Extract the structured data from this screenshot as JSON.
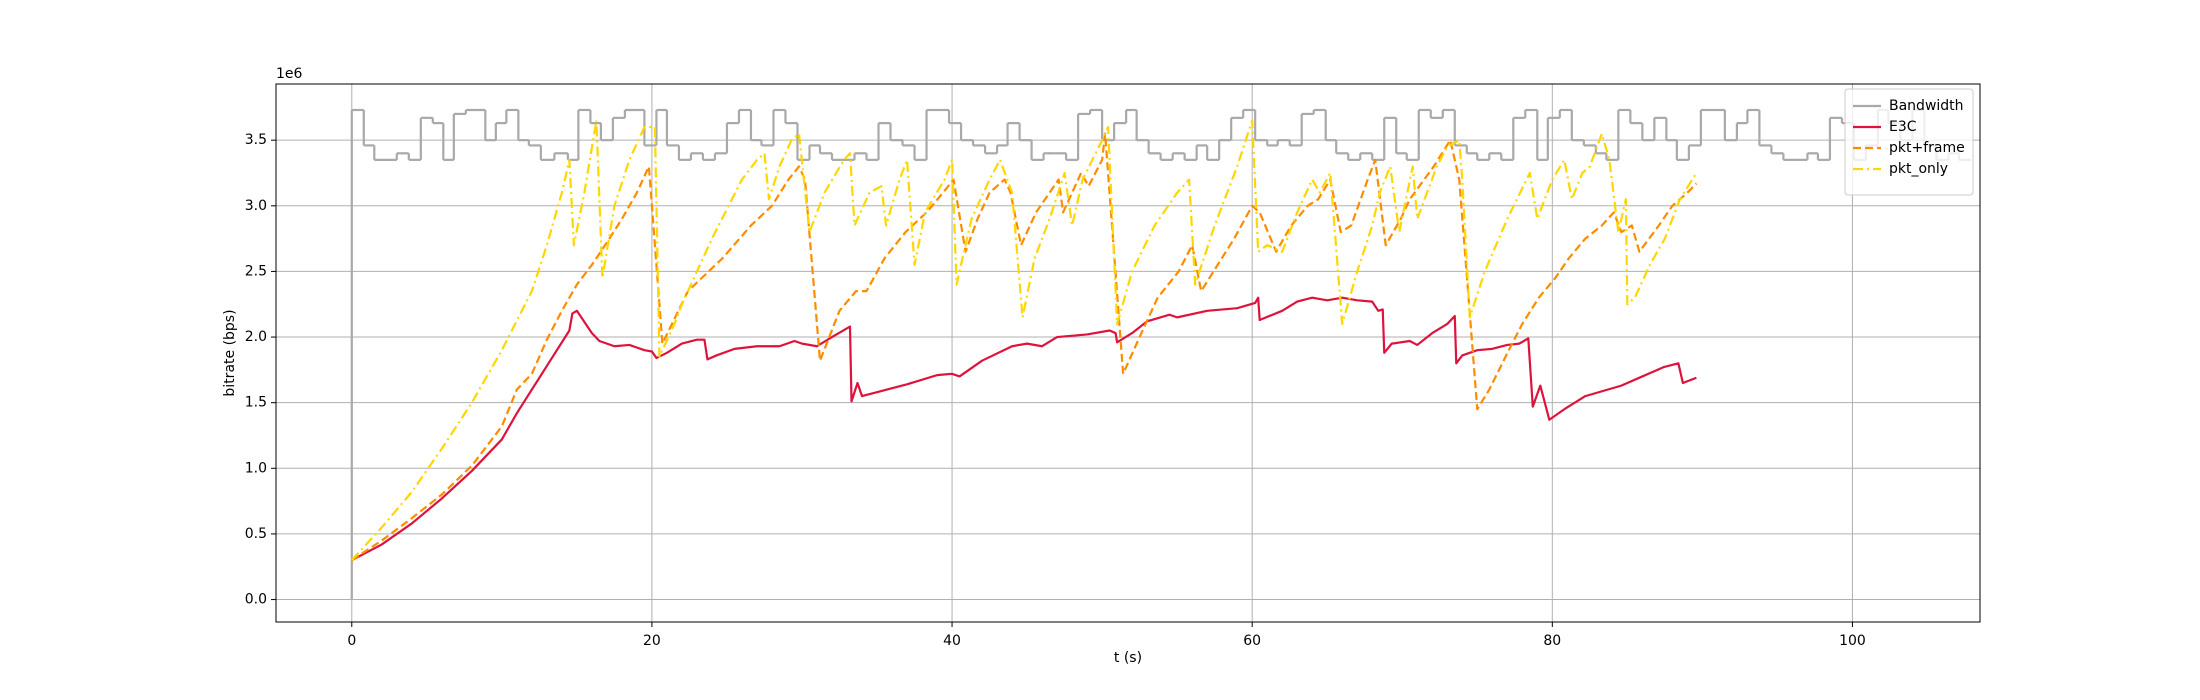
{
  "chart_data": {
    "type": "line",
    "x_label": "t (s)",
    "y_label": "bitrate (bps)",
    "y_offset_label": "1e6",
    "xlim": [
      -5.05,
      108.5
    ],
    "xticks": [
      0,
      20,
      40,
      60,
      80,
      100
    ],
    "ylim": [
      -0.171,
      3.928
    ],
    "yticks": [
      {
        "value": 0,
        "label": "0.0"
      },
      0.5,
      {
        "value": 1,
        "label": "1.0"
      },
      1.5,
      {
        "value": 2,
        "label": "2.0"
      },
      2.5,
      {
        "value": 3,
        "label": "3.0"
      },
      3.5
    ],
    "grid": true,
    "legend": "upper right",
    "series": [
      {
        "name": "Bandwidth",
        "color": "#a9a9a9",
        "linestyle": "solid",
        "drawstyle": "steps-post",
        "x": [
          0,
          0,
          0.8,
          1.5,
          3.0,
          3.8,
          4.6,
          5.4,
          6.1,
          6.8,
          7.6,
          8.9,
          9.6,
          10.3,
          11.1,
          11.8,
          12.6,
          13.5,
          14.4,
          15.1,
          15.9,
          16.6,
          17.4,
          18.2,
          19.5,
          20.3,
          21.0,
          21.8,
          22.6,
          23.4,
          24.2,
          25.0,
          25.8,
          26.6,
          27.3,
          28.1,
          28.9,
          29.7,
          30.5,
          31.2,
          32.0,
          32.8,
          33.5,
          34.3,
          35.1,
          35.9,
          36.7,
          37.5,
          38.3,
          39.0,
          39.8,
          40.6,
          41.4,
          42.2,
          43.0,
          43.7,
          44.5,
          45.3,
          46.1,
          46.9,
          47.6,
          48.4,
          49.2,
          50.0,
          50.8,
          51.6,
          52.3,
          53.1,
          53.9,
          54.7,
          55.5,
          56.3,
          57.0,
          57.8,
          58.6,
          59.4,
          60.2,
          61.0,
          61.7,
          62.5,
          63.3,
          64.1,
          64.9,
          65.6,
          66.4,
          67.2,
          68.0,
          68.8,
          69.6,
          70.3,
          71.1,
          71.9,
          72.7,
          73.5,
          74.3,
          75.0,
          75.8,
          76.6,
          77.4,
          78.2,
          79.0,
          79.7,
          80.5,
          81.3,
          82.1,
          82.9,
          83.6,
          84.4,
          85.2,
          86.0,
          86.8,
          87.6,
          88.3,
          89.1,
          89.9,
          90.7,
          91.5,
          92.3,
          93.0,
          93.8,
          94.6,
          95.4,
          96.2,
          97.0,
          97.7,
          98.5,
          99.3,
          100.1,
          100.9,
          101.7,
          102.4,
          103.2,
          104.0,
          104.8,
          105.6,
          106.4,
          107.1,
          107.9
        ],
        "values": [
          0,
          3.73,
          3.46,
          3.35,
          3.4,
          3.35,
          3.67,
          3.63,
          3.35,
          3.7,
          3.73,
          3.5,
          3.63,
          3.73,
          3.5,
          3.46,
          3.35,
          3.4,
          3.35,
          3.73,
          3.63,
          3.5,
          3.67,
          3.73,
          3.46,
          3.73,
          3.46,
          3.35,
          3.4,
          3.35,
          3.4,
          3.63,
          3.73,
          3.5,
          3.46,
          3.73,
          3.63,
          3.35,
          3.46,
          3.4,
          3.35,
          3.35,
          3.4,
          3.35,
          3.63,
          3.5,
          3.46,
          3.35,
          3.73,
          3.73,
          3.63,
          3.5,
          3.46,
          3.4,
          3.46,
          3.63,
          3.5,
          3.35,
          3.4,
          3.4,
          3.35,
          3.7,
          3.73,
          3.5,
          3.63,
          3.73,
          3.5,
          3.4,
          3.35,
          3.4,
          3.35,
          3.46,
          3.35,
          3.5,
          3.67,
          3.73,
          3.5,
          3.46,
          3.5,
          3.46,
          3.7,
          3.73,
          3.5,
          3.4,
          3.35,
          3.4,
          3.35,
          3.67,
          3.4,
          3.35,
          3.73,
          3.67,
          3.73,
          3.46,
          3.4,
          3.35,
          3.4,
          3.35,
          3.67,
          3.73,
          3.35,
          3.67,
          3.73,
          3.5,
          3.46,
          3.4,
          3.35,
          3.73,
          3.63,
          3.5,
          3.67,
          3.5,
          3.35,
          3.46,
          3.73,
          3.73,
          3.5,
          3.63,
          3.73,
          3.46,
          3.4,
          3.35,
          3.35,
          3.4,
          3.35,
          3.67,
          3.63,
          3.35,
          3.46,
          3.73,
          3.63,
          3.5,
          3.73,
          3.46,
          3.35,
          3.4,
          3.35,
          3.35
        ]
      },
      {
        "name": "E3C",
        "color": "#dc143c",
        "linestyle": "solid",
        "x": [
          0,
          2,
          4,
          6,
          8,
          10,
          11,
          13,
          14.5,
          14.7,
          15,
          16,
          16.5,
          17.5,
          18.5,
          19.5,
          20,
          20.3,
          21,
          22,
          23,
          23.5,
          23.7,
          24.3,
          25.5,
          27,
          28.5,
          29.5,
          30,
          31,
          32,
          33.2,
          33.3,
          33.7,
          34,
          35,
          37,
          39,
          40,
          40.5,
          42,
          44,
          45,
          46,
          47,
          49,
          50.5,
          50.9,
          51,
          52,
          53,
          54.5,
          55,
          57,
          59,
          60.2,
          60.4,
          60.5,
          62,
          63,
          64,
          65,
          66,
          67,
          68,
          68.4,
          68.7,
          68.8,
          69.3,
          70.5,
          71,
          72,
          73,
          73.5,
          73.6,
          74,
          75,
          76,
          77,
          77.8,
          78.4,
          78.7,
          79.2,
          79.8,
          80.8,
          82.2,
          84.6,
          86,
          87.4,
          88.4,
          88.7,
          89.6
        ],
        "values": [
          0.3,
          0.42,
          0.58,
          0.77,
          0.98,
          1.22,
          1.42,
          1.78,
          2.05,
          2.18,
          2.2,
          2.03,
          1.97,
          1.93,
          1.94,
          1.9,
          1.89,
          1.84,
          1.88,
          1.95,
          1.98,
          1.98,
          1.83,
          1.86,
          1.91,
          1.93,
          1.93,
          1.97,
          1.95,
          1.93,
          2.0,
          2.08,
          1.51,
          1.65,
          1.55,
          1.58,
          1.64,
          1.71,
          1.72,
          1.7,
          1.82,
          1.93,
          1.95,
          1.93,
          2.0,
          2.02,
          2.05,
          2.03,
          1.96,
          2.03,
          2.12,
          2.17,
          2.15,
          2.2,
          2.22,
          2.26,
          2.3,
          2.13,
          2.2,
          2.27,
          2.3,
          2.28,
          2.3,
          2.28,
          2.27,
          2.2,
          2.21,
          1.88,
          1.95,
          1.97,
          1.94,
          2.03,
          2.1,
          2.16,
          1.8,
          1.86,
          1.9,
          1.91,
          1.94,
          1.95,
          1.99,
          1.47,
          1.63,
          1.37,
          1.45,
          1.55,
          1.63,
          1.7,
          1.77,
          1.8,
          1.65,
          1.69
        ]
      },
      {
        "name": "pkt+frame",
        "color": "#ff8c00",
        "linestyle": "dashed",
        "x": [
          0,
          2,
          4,
          6,
          8,
          10,
          11,
          12,
          13,
          14,
          15,
          16,
          17,
          18,
          19,
          19.8,
          20.7,
          22.4,
          24.7,
          26.6,
          28,
          29.1,
          29.8,
          30.2,
          31.2,
          32.5,
          33.6,
          34.3,
          35.5,
          36.9,
          38.3,
          39.4,
          40.1,
          40.9,
          41.7,
          42.5,
          43.5,
          43.9,
          44.6,
          45.6,
          46.5,
          47.1,
          47.4,
          48.6,
          49.1,
          50,
          50.2,
          51.4,
          52.5,
          53.7,
          55.1,
          56,
          56.6,
          57.7,
          58.8,
          60,
          60.5,
          61.6,
          62.6,
          63.7,
          64.4,
          65.2,
          65.9,
          66.6,
          67.7,
          68.2,
          68.9,
          69.9,
          70.5,
          72.1,
          73.2,
          73.8,
          75,
          75.8,
          77.1,
          78,
          79.1,
          80.2,
          81.1,
          82.2,
          83.3,
          84.1,
          84.6,
          85.3,
          85.8,
          87.1,
          88,
          89,
          89.6
        ],
        "values": [
          0.3,
          0.45,
          0.62,
          0.8,
          1.02,
          1.32,
          1.6,
          1.72,
          1.98,
          2.2,
          2.4,
          2.55,
          2.72,
          2.9,
          3.1,
          3.3,
          1.95,
          2.35,
          2.6,
          2.85,
          3.0,
          3.2,
          3.3,
          3.2,
          1.82,
          2.2,
          2.35,
          2.35,
          2.6,
          2.8,
          2.95,
          3.1,
          3.2,
          2.65,
          2.9,
          3.1,
          3.2,
          3.1,
          2.7,
          2.95,
          3.1,
          3.2,
          2.95,
          3.25,
          3.15,
          3.35,
          3.55,
          1.72,
          2.0,
          2.3,
          2.5,
          2.7,
          2.35,
          2.55,
          2.75,
          3.0,
          2.95,
          2.65,
          2.85,
          3.0,
          3.05,
          3.2,
          2.8,
          2.85,
          3.2,
          3.35,
          2.7,
          2.9,
          3.05,
          3.3,
          3.5,
          3.2,
          1.45,
          1.6,
          1.9,
          2.1,
          2.3,
          2.45,
          2.6,
          2.75,
          2.85,
          2.95,
          2.8,
          2.85,
          2.65,
          2.85,
          3.0,
          3.1,
          3.17
        ]
      },
      {
        "name": "pkt_only",
        "color": "#ffd700",
        "linestyle": "dashdot",
        "x": [
          0,
          2,
          4,
          6,
          8,
          10,
          12,
          13,
          14,
          14.5,
          14.8,
          15.5,
          16.3,
          16.7,
          17.5,
          18.5,
          19.5,
          20.2,
          20.5,
          21.5,
          22,
          24,
          26,
          27,
          27.5,
          27.8,
          28.5,
          29.3,
          29.8,
          30.5,
          31.5,
          32.8,
          33.2,
          33.5,
          34.5,
          35.3,
          35.6,
          36.5,
          37,
          37.5,
          38.2,
          39.5,
          40,
          40.3,
          41.3,
          42.5,
          43.2,
          44,
          44.7,
          45.5,
          46.5,
          47.5,
          48,
          48.7,
          50,
          50.4,
          51,
          52,
          53.5,
          55,
          55.8,
          56.2,
          57.5,
          59,
          60,
          60.4,
          61,
          62,
          63,
          64,
          64.5,
          65.2,
          66,
          67,
          68,
          68.5,
          69.2,
          69.8,
          70.7,
          71,
          72.3,
          73,
          73.8,
          74,
          74.5,
          75.5,
          77,
          78.5,
          79,
          80,
          80.8,
          81.3,
          82,
          82.5,
          83.3,
          83.8,
          84.4,
          84.9,
          85,
          85.5,
          86.5,
          87.5,
          88.5,
          89.6
        ],
        "values": [
          0.3,
          0.55,
          0.82,
          1.15,
          1.5,
          1.9,
          2.35,
          2.7,
          3.1,
          3.35,
          2.7,
          3.1,
          3.65,
          2.45,
          3.0,
          3.35,
          3.6,
          3.6,
          1.85,
          2.1,
          2.25,
          2.75,
          3.2,
          3.35,
          3.4,
          3.05,
          3.3,
          3.5,
          3.55,
          2.8,
          3.1,
          3.35,
          3.4,
          2.85,
          3.1,
          3.15,
          2.85,
          3.2,
          3.35,
          2.55,
          2.95,
          3.2,
          3.35,
          2.4,
          2.9,
          3.2,
          3.35,
          3.1,
          2.15,
          2.6,
          2.9,
          3.25,
          2.85,
          3.2,
          3.5,
          3.6,
          2.1,
          2.5,
          2.85,
          3.1,
          3.2,
          2.4,
          2.85,
          3.3,
          3.65,
          2.65,
          2.7,
          2.65,
          2.95,
          3.2,
          3.1,
          3.25,
          2.1,
          2.5,
          2.85,
          3.1,
          3.3,
          2.8,
          3.3,
          2.9,
          3.3,
          3.45,
          3.5,
          3.2,
          2.15,
          2.5,
          2.9,
          3.25,
          2.9,
          3.2,
          3.35,
          3.05,
          3.25,
          3.3,
          3.55,
          3.35,
          2.8,
          3.05,
          2.25,
          2.3,
          2.55,
          2.75,
          3.05,
          3.25
        ]
      }
    ]
  }
}
